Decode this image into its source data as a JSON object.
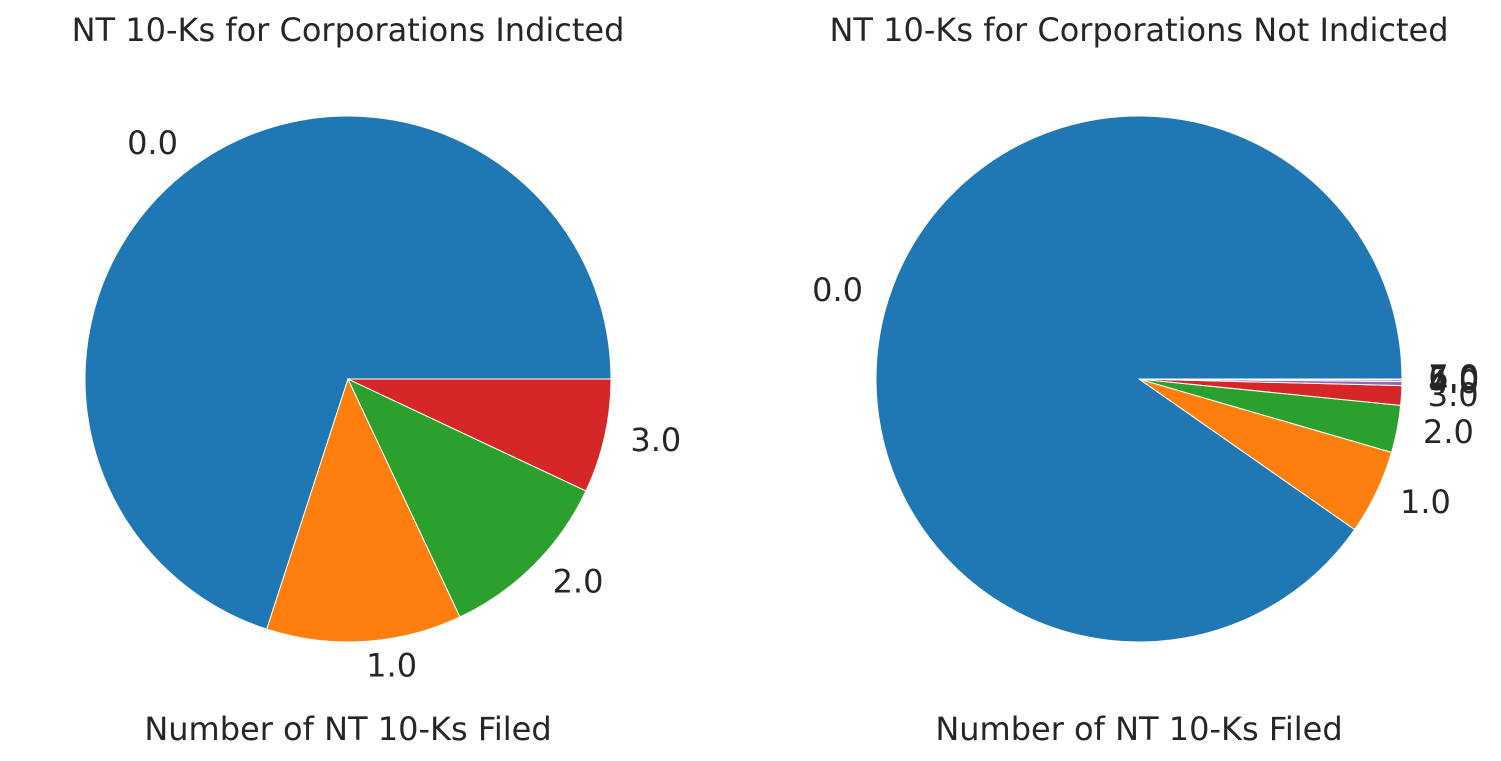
{
  "chart_data": [
    {
      "type": "pie",
      "title": "NT 10-Ks for Corporations Indicted",
      "xlabel": "Number of NT 10-Ks Filed",
      "labels": [
        "0.0",
        "1.0",
        "2.0",
        "3.0"
      ],
      "values": [
        70.0,
        12.0,
        11.0,
        7.0
      ],
      "colors": [
        "#1f77b4",
        "#ff7f0e",
        "#2ca02c",
        "#d62728"
      ]
    },
    {
      "type": "pie",
      "title": "NT 10-Ks for Corporations Not Indicted",
      "xlabel": "Number of NT 10-Ks Filed",
      "labels": [
        "0.0",
        "1.0",
        "2.0",
        "3.0",
        "4.0",
        "5.0",
        "6.0",
        "7.0"
      ],
      "values": [
        90.3,
        5.2,
        2.9,
        1.2,
        0.25,
        0.1,
        0.03,
        0.02
      ],
      "colors": [
        "#1f77b4",
        "#ff7f0e",
        "#2ca02c",
        "#d62728",
        "#9467bd",
        "#8c564b",
        "#e377c2",
        "#7f7f7f"
      ]
    }
  ]
}
